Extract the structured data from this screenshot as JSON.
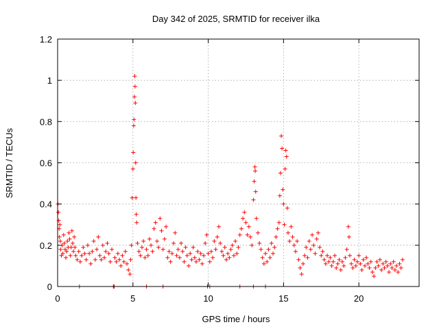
{
  "chart_data": {
    "type": "scatter",
    "title": "Day 342 of 2025, SRMTID for receiver ilka",
    "xlabel": "GPS time / hours",
    "ylabel": "SRMTID / TECUs",
    "xlim": [
      0,
      24
    ],
    "ylim": [
      0,
      1.2
    ],
    "xticks": [
      0,
      5,
      10,
      15,
      20
    ],
    "xtick_labels": [
      "0",
      "5",
      "10",
      "15",
      "20"
    ],
    "yticks": [
      0,
      0.2,
      0.4,
      0.6,
      0.8,
      1,
      1.2
    ],
    "ytick_labels": [
      "0",
      "0.2",
      "0.4",
      "0.6",
      "0.8",
      "1",
      "1.2"
    ],
    "grid": true,
    "marker": "+",
    "color": "#ff0000",
    "series": [
      {
        "name": "SRMTID",
        "points": [
          [
            0.02,
            0.4
          ],
          [
            0.05,
            0.36
          ],
          [
            0.08,
            0.32
          ],
          [
            0.1,
            0.28
          ],
          [
            0.12,
            0.24
          ],
          [
            0.15,
            0.3
          ],
          [
            0.18,
            0.22
          ],
          [
            0.2,
            0.18
          ],
          [
            0.25,
            0.15
          ],
          [
            0.3,
            0.2
          ],
          [
            0.35,
            0.16
          ],
          [
            0.4,
            0.25
          ],
          [
            0.45,
            0.21
          ],
          [
            0.5,
            0.18
          ],
          [
            0.55,
            0.14
          ],
          [
            0.6,
            0.17
          ],
          [
            0.65,
            0.22
          ],
          [
            0.7,
            0.19
          ],
          [
            0.75,
            0.26
          ],
          [
            0.8,
            0.23
          ],
          [
            0.85,
            0.15
          ],
          [
            0.9,
            0.19
          ],
          [
            0.95,
            0.27
          ],
          [
            1.0,
            0.21
          ],
          [
            1.05,
            0.17
          ],
          [
            1.1,
            0.24
          ],
          [
            1.15,
            0.19
          ],
          [
            1.2,
            0.15
          ],
          [
            1.3,
            0.13
          ],
          [
            1.4,
            0.17
          ],
          [
            1.5,
            0.12
          ],
          [
            1.6,
            0.15
          ],
          [
            1.7,
            0.19
          ],
          [
            1.8,
            0.16
          ],
          [
            1.9,
            0.13
          ],
          [
            2.0,
            0.2
          ],
          [
            2.1,
            0.16
          ],
          [
            2.2,
            0.11
          ],
          [
            2.3,
            0.17
          ],
          [
            2.4,
            0.22
          ],
          [
            2.5,
            0.13
          ],
          [
            2.6,
            0.18
          ],
          [
            2.7,
            0.24
          ],
          [
            2.8,
            0.15
          ],
          [
            2.9,
            0.13
          ],
          [
            3.0,
            0.2
          ],
          [
            3.1,
            0.14
          ],
          [
            3.2,
            0.17
          ],
          [
            3.3,
            0.21
          ],
          [
            3.4,
            0.16
          ],
          [
            3.5,
            0.12
          ],
          [
            3.6,
            0.18
          ],
          [
            3.8,
            0.14
          ],
          [
            3.9,
            0.12
          ],
          [
            4.0,
            0.16
          ],
          [
            4.1,
            0.13
          ],
          [
            4.2,
            0.1
          ],
          [
            4.3,
            0.15
          ],
          [
            4.4,
            0.12
          ],
          [
            4.5,
            0.17
          ],
          [
            4.6,
            0.11
          ],
          [
            4.7,
            0.08
          ],
          [
            4.8,
            0.06
          ],
          [
            4.85,
            0.13
          ],
          [
            4.9,
            0.2
          ],
          [
            4.95,
            0.43
          ],
          [
            5.0,
            0.57
          ],
          [
            5.02,
            0.65
          ],
          [
            5.05,
            0.78
          ],
          [
            5.07,
            0.81
          ],
          [
            5.1,
            0.92
          ],
          [
            5.12,
            1.02
          ],
          [
            5.14,
            0.97
          ],
          [
            5.16,
            0.89
          ],
          [
            5.18,
            0.6
          ],
          [
            5.2,
            0.43
          ],
          [
            5.22,
            0.35
          ],
          [
            5.25,
            0.31
          ],
          [
            5.3,
            0.21
          ],
          [
            5.4,
            0.17
          ],
          [
            5.5,
            0.15
          ],
          [
            5.6,
            0.19
          ],
          [
            5.7,
            0.22
          ],
          [
            5.8,
            0.14
          ],
          [
            5.9,
            0.18
          ],
          [
            6.0,
            0.15
          ],
          [
            6.1,
            0.23
          ],
          [
            6.2,
            0.2
          ],
          [
            6.3,
            0.17
          ],
          [
            6.4,
            0.28
          ],
          [
            6.5,
            0.31
          ],
          [
            6.6,
            0.22
          ],
          [
            6.7,
            0.19
          ],
          [
            6.8,
            0.33
          ],
          [
            6.9,
            0.27
          ],
          [
            7.0,
            0.18
          ],
          [
            7.1,
            0.23
          ],
          [
            7.2,
            0.29
          ],
          [
            7.3,
            0.14
          ],
          [
            7.4,
            0.17
          ],
          [
            7.5,
            0.12
          ],
          [
            7.6,
            0.16
          ],
          [
            7.7,
            0.21
          ],
          [
            7.8,
            0.26
          ],
          [
            7.9,
            0.15
          ],
          [
            8.0,
            0.18
          ],
          [
            8.1,
            0.14
          ],
          [
            8.2,
            0.21
          ],
          [
            8.3,
            0.17
          ],
          [
            8.4,
            0.12
          ],
          [
            8.5,
            0.19
          ],
          [
            8.6,
            0.15
          ],
          [
            8.7,
            0.1
          ],
          [
            8.8,
            0.16
          ],
          [
            8.9,
            0.13
          ],
          [
            9.0,
            0.19
          ],
          [
            9.1,
            0.14
          ],
          [
            9.2,
            0.12
          ],
          [
            9.3,
            0.17
          ],
          [
            9.4,
            0.13
          ],
          [
            9.5,
            0.16
          ],
          [
            9.6,
            0.11
          ],
          [
            9.7,
            0.15
          ],
          [
            9.8,
            0.21
          ],
          [
            9.9,
            0.25
          ],
          [
            10.0,
            0.16
          ],
          [
            10.1,
            0.12
          ],
          [
            10.2,
            0.17
          ],
          [
            10.3,
            0.14
          ],
          [
            10.4,
            0.22
          ],
          [
            10.5,
            0.18
          ],
          [
            10.6,
            0.24
          ],
          [
            10.7,
            0.29
          ],
          [
            10.8,
            0.21
          ],
          [
            10.9,
            0.17
          ],
          [
            11.0,
            0.15
          ],
          [
            11.1,
            0.19
          ],
          [
            11.2,
            0.13
          ],
          [
            11.3,
            0.16
          ],
          [
            11.4,
            0.14
          ],
          [
            11.5,
            0.18
          ],
          [
            11.6,
            0.2
          ],
          [
            11.7,
            0.15
          ],
          [
            11.8,
            0.22
          ],
          [
            11.9,
            0.16
          ],
          [
            12.0,
            0.19
          ],
          [
            12.1,
            0.25
          ],
          [
            12.2,
            0.28
          ],
          [
            12.3,
            0.33
          ],
          [
            12.4,
            0.36
          ],
          [
            12.5,
            0.31
          ],
          [
            12.6,
            0.25
          ],
          [
            12.7,
            0.29
          ],
          [
            12.8,
            0.24
          ],
          [
            12.9,
            0.2
          ],
          [
            13.0,
            0.42
          ],
          [
            13.05,
            0.51
          ],
          [
            13.1,
            0.58
          ],
          [
            13.12,
            0.56
          ],
          [
            13.15,
            0.46
          ],
          [
            13.2,
            0.33
          ],
          [
            13.3,
            0.26
          ],
          [
            13.4,
            0.21
          ],
          [
            13.5,
            0.18
          ],
          [
            13.6,
            0.14
          ],
          [
            13.7,
            0.11
          ],
          [
            13.8,
            0.16
          ],
          [
            13.9,
            0.12
          ],
          [
            14.0,
            0.18
          ],
          [
            14.1,
            0.14
          ],
          [
            14.2,
            0.21
          ],
          [
            14.3,
            0.16
          ],
          [
            14.4,
            0.19
          ],
          [
            14.5,
            0.24
          ],
          [
            14.6,
            0.28
          ],
          [
            14.7,
            0.31
          ],
          [
            14.75,
            0.44
          ],
          [
            14.8,
            0.55
          ],
          [
            14.85,
            0.73
          ],
          [
            14.9,
            0.67
          ],
          [
            14.95,
            0.47
          ],
          [
            15.0,
            0.4
          ],
          [
            15.05,
            0.3
          ],
          [
            15.1,
            0.57
          ],
          [
            15.15,
            0.66
          ],
          [
            15.2,
            0.63
          ],
          [
            15.25,
            0.38
          ],
          [
            15.3,
            0.26
          ],
          [
            15.4,
            0.22
          ],
          [
            15.5,
            0.29
          ],
          [
            15.6,
            0.24
          ],
          [
            15.7,
            0.2
          ],
          [
            15.8,
            0.17
          ],
          [
            15.9,
            0.22
          ],
          [
            16.0,
            0.13
          ],
          [
            16.1,
            0.09
          ],
          [
            16.2,
            0.06
          ],
          [
            16.3,
            0.11
          ],
          [
            16.4,
            0.15
          ],
          [
            16.5,
            0.19
          ],
          [
            16.6,
            0.14
          ],
          [
            16.7,
            0.22
          ],
          [
            16.8,
            0.18
          ],
          [
            16.9,
            0.25
          ],
          [
            17.0,
            0.2
          ],
          [
            17.1,
            0.16
          ],
          [
            17.2,
            0.23
          ],
          [
            17.3,
            0.26
          ],
          [
            17.4,
            0.19
          ],
          [
            17.5,
            0.15
          ],
          [
            17.6,
            0.17
          ],
          [
            17.7,
            0.13
          ],
          [
            17.8,
            0.11
          ],
          [
            17.9,
            0.15
          ],
          [
            18.0,
            0.12
          ],
          [
            18.1,
            0.14
          ],
          [
            18.2,
            0.1
          ],
          [
            18.3,
            0.12
          ],
          [
            18.4,
            0.15
          ],
          [
            18.5,
            0.09
          ],
          [
            18.6,
            0.11
          ],
          [
            18.7,
            0.13
          ],
          [
            18.8,
            0.08
          ],
          [
            18.9,
            0.12
          ],
          [
            19.0,
            0.1
          ],
          [
            19.1,
            0.14
          ],
          [
            19.2,
            0.18
          ],
          [
            19.3,
            0.29
          ],
          [
            19.35,
            0.24
          ],
          [
            19.4,
            0.15
          ],
          [
            19.5,
            0.11
          ],
          [
            19.6,
            0.09
          ],
          [
            19.7,
            0.13
          ],
          [
            19.8,
            0.1
          ],
          [
            19.9,
            0.12
          ],
          [
            20.0,
            0.15
          ],
          [
            20.1,
            0.11
          ],
          [
            20.2,
            0.08
          ],
          [
            20.3,
            0.13
          ],
          [
            20.4,
            0.1
          ],
          [
            20.5,
            0.14
          ],
          [
            20.6,
            0.11
          ],
          [
            20.7,
            0.09
          ],
          [
            20.8,
            0.12
          ],
          [
            20.9,
            0.07
          ],
          [
            21.0,
            0.05
          ],
          [
            21.1,
            0.09
          ],
          [
            21.2,
            0.12
          ],
          [
            21.3,
            0.1
          ],
          [
            21.4,
            0.13
          ],
          [
            21.5,
            0.08
          ],
          [
            21.6,
            0.11
          ],
          [
            21.7,
            0.09
          ],
          [
            21.8,
            0.12
          ],
          [
            21.9,
            0.1
          ],
          [
            22.0,
            0.07
          ],
          [
            22.1,
            0.11
          ],
          [
            22.2,
            0.09
          ],
          [
            22.3,
            0.12
          ],
          [
            22.4,
            0.08
          ],
          [
            22.5,
            0.1
          ],
          [
            22.6,
            0.07
          ],
          [
            22.7,
            0.11
          ],
          [
            22.8,
            0.09
          ],
          [
            22.9,
            0.13
          ],
          [
            1.45,
            0.0
          ],
          [
            3.7,
            0.0
          ],
          [
            3.73,
            0.0
          ],
          [
            3.76,
            0.0
          ],
          [
            5.9,
            0.0
          ],
          [
            7.0,
            0.0
          ],
          [
            9.95,
            0.0
          ],
          [
            10.1,
            0.0
          ],
          [
            12.1,
            0.0
          ],
          [
            13.0,
            0.0
          ],
          [
            13.8,
            0.0
          ]
        ]
      }
    ]
  }
}
